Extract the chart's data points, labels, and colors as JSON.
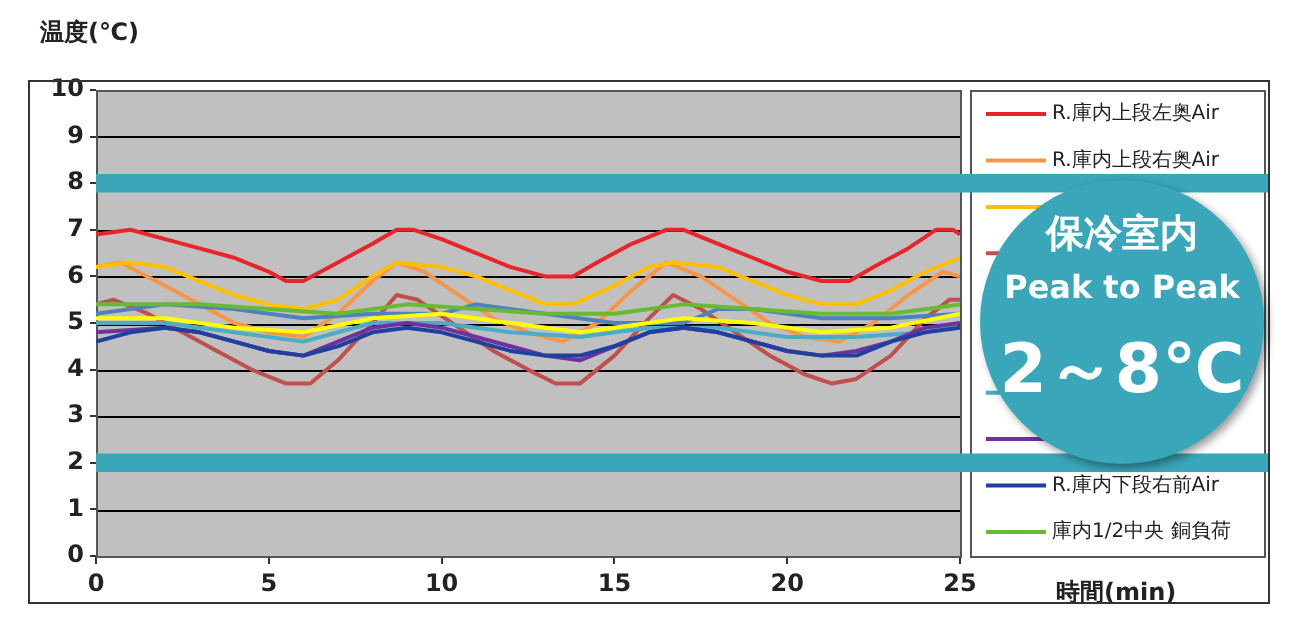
{
  "chart_data": {
    "type": "line",
    "ylabel": "温度(℃)",
    "xlabel": "時間(min)",
    "xlim": [
      0,
      25
    ],
    "xticks": [
      0,
      5,
      10,
      15,
      20,
      25
    ],
    "ylim": [
      0,
      10
    ],
    "yticks": [
      0,
      1,
      2,
      3,
      4,
      5,
      6,
      7,
      8,
      9,
      10
    ],
    "grid": "y",
    "legend": "right",
    "marker": "none",
    "line_style": "solid",
    "bands": [
      {
        "axis": "y",
        "from": 7.8,
        "to": 8.2,
        "color": "#3aa6b9"
      },
      {
        "axis": "y",
        "from": 1.8,
        "to": 2.2,
        "color": "#3aa6b9"
      }
    ],
    "annotations": [
      "保冷室内",
      "Peak to Peak",
      "2～8℃"
    ],
    "series": [
      {
        "name": "R.庫内上段左奥Air",
        "color": "#e8262a",
        "x": [
          0,
          1,
          2,
          3,
          4,
          5,
          5.5,
          6,
          7,
          8,
          8.7,
          9.2,
          10,
          11,
          12,
          13,
          13.8,
          14.5,
          15.5,
          16.5,
          17,
          18,
          19,
          20,
          21,
          21.8,
          22.5,
          23.5,
          24.3,
          24.8,
          25
        ],
        "values": [
          6.9,
          7.0,
          6.8,
          6.6,
          6.4,
          6.1,
          5.9,
          5.9,
          6.3,
          6.7,
          7.0,
          7.0,
          6.8,
          6.5,
          6.2,
          6.0,
          6.0,
          6.3,
          6.7,
          7.0,
          7.0,
          6.7,
          6.4,
          6.1,
          5.9,
          5.9,
          6.2,
          6.6,
          7.0,
          7.0,
          6.9
        ]
      },
      {
        "name": "R.庫内上段右奥Air",
        "color": "#f79646",
        "x": [
          0,
          0.7,
          2,
          3,
          4,
          5,
          6,
          7,
          8,
          8.7,
          9.5,
          10.5,
          11.5,
          12.5,
          13.5,
          14.5,
          15.5,
          16.5,
          17.5,
          18.5,
          19.5,
          20.5,
          21.5,
          22.5,
          23.5,
          24.5,
          25
        ],
        "values": [
          6.2,
          6.3,
          5.8,
          5.4,
          5.0,
          4.8,
          4.7,
          5.2,
          5.9,
          6.3,
          6.1,
          5.6,
          5.1,
          4.8,
          4.6,
          5.0,
          5.7,
          6.3,
          6.0,
          5.5,
          5.0,
          4.7,
          4.6,
          5.0,
          5.6,
          6.1,
          6.0
        ]
      },
      {
        "color": "#ffc000",
        "x": [
          0,
          1,
          2,
          3,
          4,
          5,
          6,
          7,
          8,
          8.7,
          10,
          11,
          12,
          13,
          13.8,
          15,
          16,
          16.7,
          18,
          19,
          20,
          21,
          22,
          23,
          24,
          25
        ],
        "values": [
          6.2,
          6.3,
          6.2,
          5.9,
          5.6,
          5.4,
          5.3,
          5.5,
          6.0,
          6.3,
          6.2,
          6.0,
          5.7,
          5.4,
          5.4,
          5.8,
          6.2,
          6.3,
          6.2,
          5.9,
          5.6,
          5.4,
          5.4,
          5.7,
          6.1,
          6.4
        ]
      },
      {
        "color": "#c0504d",
        "x": [
          0,
          0.5,
          1.5,
          2.5,
          3.5,
          4.5,
          5.5,
          6.2,
          7,
          8,
          8.7,
          9.3,
          10.5,
          11.5,
          12.5,
          13.3,
          14,
          15,
          16,
          16.7,
          17.5,
          18.5,
          19.5,
          20.5,
          21.3,
          22,
          23,
          24,
          24.7,
          25
        ],
        "values": [
          5.4,
          5.5,
          5.2,
          4.8,
          4.4,
          4.0,
          3.7,
          3.7,
          4.2,
          5.0,
          5.6,
          5.5,
          4.9,
          4.4,
          4.0,
          3.7,
          3.7,
          4.3,
          5.1,
          5.6,
          5.3,
          4.8,
          4.3,
          3.9,
          3.7,
          3.8,
          4.3,
          5.1,
          5.5,
          5.5
        ]
      },
      {
        "color": "#4f81bd",
        "x": [
          0,
          2,
          4,
          6,
          8,
          10,
          11,
          13,
          15,
          17,
          18,
          19,
          21,
          23,
          25
        ],
        "values": [
          5.2,
          5.4,
          5.3,
          5.1,
          5.2,
          5.2,
          5.4,
          5.2,
          5.0,
          5.0,
          5.3,
          5.3,
          5.1,
          5.1,
          5.2
        ]
      },
      {
        "color": "#ffff00",
        "x": [
          0,
          2,
          4,
          6,
          8,
          10,
          12,
          14,
          16,
          17,
          19,
          21,
          23,
          25
        ],
        "values": [
          5.1,
          5.1,
          4.9,
          4.8,
          5.1,
          5.2,
          5.0,
          4.8,
          5.0,
          5.1,
          5.0,
          4.8,
          4.9,
          5.2
        ]
      },
      {
        "color": "#4bacc6",
        "x": [
          0,
          2,
          4,
          6,
          8,
          10,
          12,
          14,
          16,
          18,
          20,
          22,
          24,
          25
        ],
        "values": [
          5.0,
          5.0,
          4.8,
          4.6,
          5.0,
          5.0,
          4.8,
          4.7,
          4.9,
          4.9,
          4.7,
          4.7,
          4.8,
          5.0
        ]
      },
      {
        "color": "#7030a0",
        "x": [
          0,
          2,
          3,
          4,
          5,
          6,
          7,
          8,
          9,
          10,
          11,
          12,
          13,
          14,
          15,
          16,
          17,
          18,
          19,
          20,
          21,
          22,
          23,
          24,
          25
        ],
        "values": [
          4.8,
          4.9,
          4.8,
          4.6,
          4.4,
          4.3,
          4.6,
          4.9,
          5.0,
          4.9,
          4.7,
          4.5,
          4.3,
          4.2,
          4.5,
          4.8,
          4.9,
          4.8,
          4.6,
          4.4,
          4.3,
          4.4,
          4.6,
          4.9,
          5.0
        ]
      },
      {
        "name": "R.庫内下段右前Air",
        "color": "#2040a0",
        "x": [
          0,
          1,
          2,
          3,
          4,
          5,
          6,
          7,
          8,
          9,
          10,
          11,
          12,
          13,
          14,
          15,
          16,
          17,
          18,
          19,
          20,
          21,
          22,
          23,
          24,
          25
        ],
        "values": [
          4.6,
          4.8,
          4.9,
          4.8,
          4.6,
          4.4,
          4.3,
          4.5,
          4.8,
          4.9,
          4.8,
          4.6,
          4.4,
          4.3,
          4.3,
          4.5,
          4.8,
          4.9,
          4.8,
          4.6,
          4.4,
          4.3,
          4.3,
          4.6,
          4.8,
          4.9
        ]
      },
      {
        "name": "庫内1/2中央 銅負荷",
        "color": "#66bb33",
        "x": [
          0,
          3,
          5,
          7,
          9,
          11,
          13,
          15,
          17,
          19,
          21,
          23,
          25
        ],
        "values": [
          5.4,
          5.4,
          5.3,
          5.2,
          5.4,
          5.3,
          5.2,
          5.2,
          5.4,
          5.3,
          5.2,
          5.2,
          5.4
        ]
      }
    ]
  }
}
